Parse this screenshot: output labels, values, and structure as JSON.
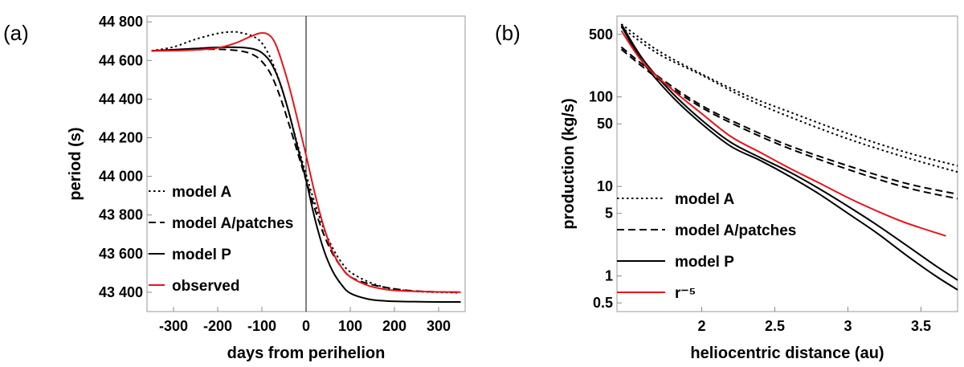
{
  "chart_data": [
    {
      "type": "line",
      "panel_label": "(a)",
      "xlabel": "days from perihelion",
      "ylabel": "period (s)",
      "xlim": [
        -360,
        360
      ],
      "ylim": [
        43300,
        44830
      ],
      "xticks": [
        -300,
        -200,
        -100,
        0,
        100,
        200,
        300
      ],
      "xtick_labels": [
        "-300",
        "-200",
        "-100",
        "0",
        "100",
        "200",
        "300"
      ],
      "yticks": [
        43400,
        43600,
        43800,
        44000,
        44200,
        44400,
        44600,
        44800
      ],
      "ytick_labels": [
        "43 400",
        "43 600",
        "43 800",
        "44 000",
        "44 200",
        "44 400",
        "44 600",
        "44 800"
      ],
      "vline_x": 0,
      "legend": [
        "model A",
        "model A/patches",
        "model P",
        "observed"
      ],
      "series": [
        {
          "name": "model A",
          "style": "dotted",
          "color": "#000000",
          "x": [
            -350,
            -300,
            -250,
            -200,
            -170,
            -150,
            -120,
            -100,
            -80,
            -60,
            -40,
            -20,
            0,
            20,
            40,
            60,
            80,
            100,
            140,
            180,
            220,
            260,
            300,
            350
          ],
          "y": [
            44650,
            44670,
            44710,
            44740,
            44748,
            44745,
            44725,
            44690,
            44610,
            44490,
            44340,
            44170,
            44010,
            43860,
            43730,
            43630,
            43555,
            43505,
            43455,
            43425,
            43410,
            43403,
            43400,
            43398
          ]
        },
        {
          "name": "model A/patches",
          "style": "dashed",
          "color": "#000000",
          "x": [
            -350,
            -300,
            -250,
            -200,
            -150,
            -120,
            -100,
            -80,
            -60,
            -40,
            -20,
            0,
            20,
            40,
            60,
            80,
            100,
            140,
            180,
            220,
            260,
            300,
            350
          ],
          "y": [
            44650,
            44652,
            44656,
            44658,
            44650,
            44630,
            44595,
            44530,
            44420,
            44280,
            44130,
            43980,
            43830,
            43700,
            43600,
            43530,
            43480,
            43445,
            43425,
            43412,
            43405,
            43402,
            43400
          ]
        },
        {
          "name": "model P",
          "style": "solid",
          "color": "#000000",
          "x": [
            -350,
            -300,
            -250,
            -200,
            -150,
            -120,
            -100,
            -80,
            -60,
            -40,
            -20,
            0,
            20,
            40,
            60,
            80,
            100,
            140,
            180,
            220,
            260,
            300,
            350
          ],
          "y": [
            44650,
            44656,
            44662,
            44668,
            44668,
            44660,
            44640,
            44590,
            44490,
            44340,
            44160,
            43980,
            43780,
            43620,
            43510,
            43440,
            43395,
            43365,
            43355,
            43352,
            43351,
            43350,
            43350
          ]
        },
        {
          "name": "observed",
          "style": "solid",
          "color": "#e8141b",
          "x": [
            -350,
            -300,
            -250,
            -200,
            -160,
            -130,
            -110,
            -100,
            -90,
            -80,
            -70,
            -60,
            -40,
            -20,
            0,
            20,
            40,
            60,
            80,
            100,
            140,
            180,
            220,
            260,
            300,
            350
          ],
          "y": [
            44650,
            44651,
            44655,
            44665,
            44690,
            44720,
            44738,
            44742,
            44740,
            44725,
            44690,
            44630,
            44480,
            44300,
            44110,
            43910,
            43740,
            43610,
            43530,
            43480,
            43435,
            43415,
            43407,
            43404,
            43402,
            43401
          ]
        }
      ]
    },
    {
      "type": "line",
      "panel_label": "(b)",
      "xlabel": "heliocentric distance (au)",
      "ylabel": "production (kg/s)",
      "xscale": "linear",
      "yscale": "log",
      "xlim": [
        1.42,
        3.75
      ],
      "ylim": [
        0.4,
        800
      ],
      "xticks": [
        2,
        2.5,
        3,
        3.5
      ],
      "xtick_labels": [
        "2",
        "2.5",
        "3",
        "3.5"
      ],
      "yticks": [
        0.5,
        1,
        5,
        10,
        50,
        100,
        500
      ],
      "ytick_labels": [
        "0.5",
        "1",
        "5",
        "10",
        "50",
        "100",
        "500"
      ],
      "legend": [
        "model A",
        "model A/patches",
        "model P",
        "r⁻⁵"
      ],
      "series": [
        {
          "name": "model A",
          "style": "dotted",
          "color": "#000000",
          "x": [
            1.45,
            1.7,
            2.0,
            2.3,
            2.6,
            3.0,
            3.4,
            3.75
          ],
          "y": [
            650,
            330,
            180,
            105,
            68,
            39,
            24,
            17
          ]
        },
        {
          "name": "model A (second branch)",
          "style": "dotted",
          "color": "#000000",
          "x": [
            1.45,
            1.7,
            2.0,
            2.3,
            2.6,
            3.0,
            3.4,
            3.75
          ],
          "y": [
            600,
            305,
            175,
            97,
            60,
            34,
            21,
            14.5
          ]
        },
        {
          "name": "model A/patches",
          "style": "dashed",
          "color": "#000000",
          "x": [
            1.45,
            1.7,
            2.0,
            2.3,
            2.6,
            3.0,
            3.4,
            3.75
          ],
          "y": [
            360,
            170,
            80,
            46,
            28.5,
            17,
            10.8,
            8.2
          ]
        },
        {
          "name": "model A/patches (second branch)",
          "style": "dashed",
          "color": "#000000",
          "x": [
            1.45,
            1.7,
            2.0,
            2.3,
            2.6,
            3.0,
            3.4,
            3.75
          ],
          "y": [
            340,
            160,
            76,
            43,
            26.5,
            15.5,
            9.7,
            7.3
          ]
        },
        {
          "name": "model P",
          "style": "solid",
          "color": "#000000",
          "x": [
            1.45,
            1.6,
            1.8,
            2.0,
            2.2,
            2.4,
            2.6,
            2.8,
            3.0,
            3.2,
            3.4,
            3.6,
            3.75
          ],
          "y": [
            650,
            260,
            110,
            55,
            31,
            21,
            14.5,
            9.5,
            6.0,
            3.7,
            2.2,
            1.3,
            0.9
          ]
        },
        {
          "name": "model P (second branch)",
          "style": "solid",
          "color": "#000000",
          "x": [
            1.45,
            1.6,
            1.8,
            2.0,
            2.2,
            2.4,
            2.6,
            2.8,
            3.0,
            3.2,
            3.4,
            3.6,
            3.75
          ],
          "y": [
            620,
            240,
            100,
            50,
            28,
            19.5,
            13,
            8.3,
            5.0,
            3.0,
            1.7,
            1.0,
            0.7
          ]
        },
        {
          "name": "r⁻⁵",
          "style": "solid",
          "color": "#e8141b",
          "x": [
            1.45,
            1.6,
            1.8,
            2.0,
            2.2,
            2.4,
            2.6,
            2.8,
            3.0,
            3.2,
            3.4,
            3.67
          ],
          "y": [
            550,
            240,
            120,
            65,
            36,
            24,
            16,
            11,
            7.5,
            5.3,
            3.9,
            2.8
          ]
        }
      ]
    }
  ]
}
